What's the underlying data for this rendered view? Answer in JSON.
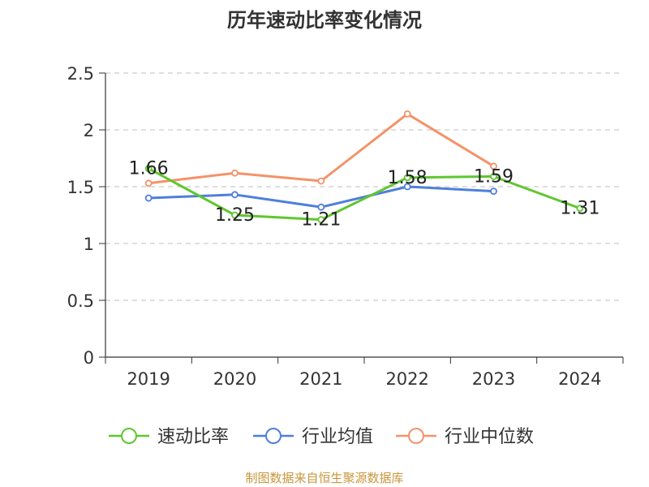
{
  "chart_data": {
    "type": "line",
    "title": "历年速动比率变化情况",
    "categories": [
      "2019",
      "2020",
      "2021",
      "2022",
      "2023",
      "2024"
    ],
    "ylim": [
      0,
      2.5
    ],
    "yticks": [
      "0",
      "0.5",
      "1",
      "1.5",
      "2",
      "2.5"
    ],
    "grid": true,
    "legend_position": "bottom",
    "series": [
      {
        "name": "速动比率",
        "color": "#5fc72e",
        "values": [
          1.66,
          1.25,
          1.21,
          1.58,
          1.59,
          1.31
        ],
        "labels": [
          "1.66",
          "1.25",
          "1.21",
          "1.58",
          "1.59",
          "1.31"
        ]
      },
      {
        "name": "行业均值",
        "color": "#4f7fdc",
        "values": [
          1.4,
          1.43,
          1.32,
          1.5,
          1.46,
          null
        ]
      },
      {
        "name": "行业中位数",
        "color": "#f59268",
        "values": [
          1.53,
          1.62,
          1.55,
          2.14,
          1.68,
          null
        ]
      }
    ]
  },
  "footer": {
    "source": "制图数据来自恒生聚源数据库",
    "color": "#c8963c"
  }
}
